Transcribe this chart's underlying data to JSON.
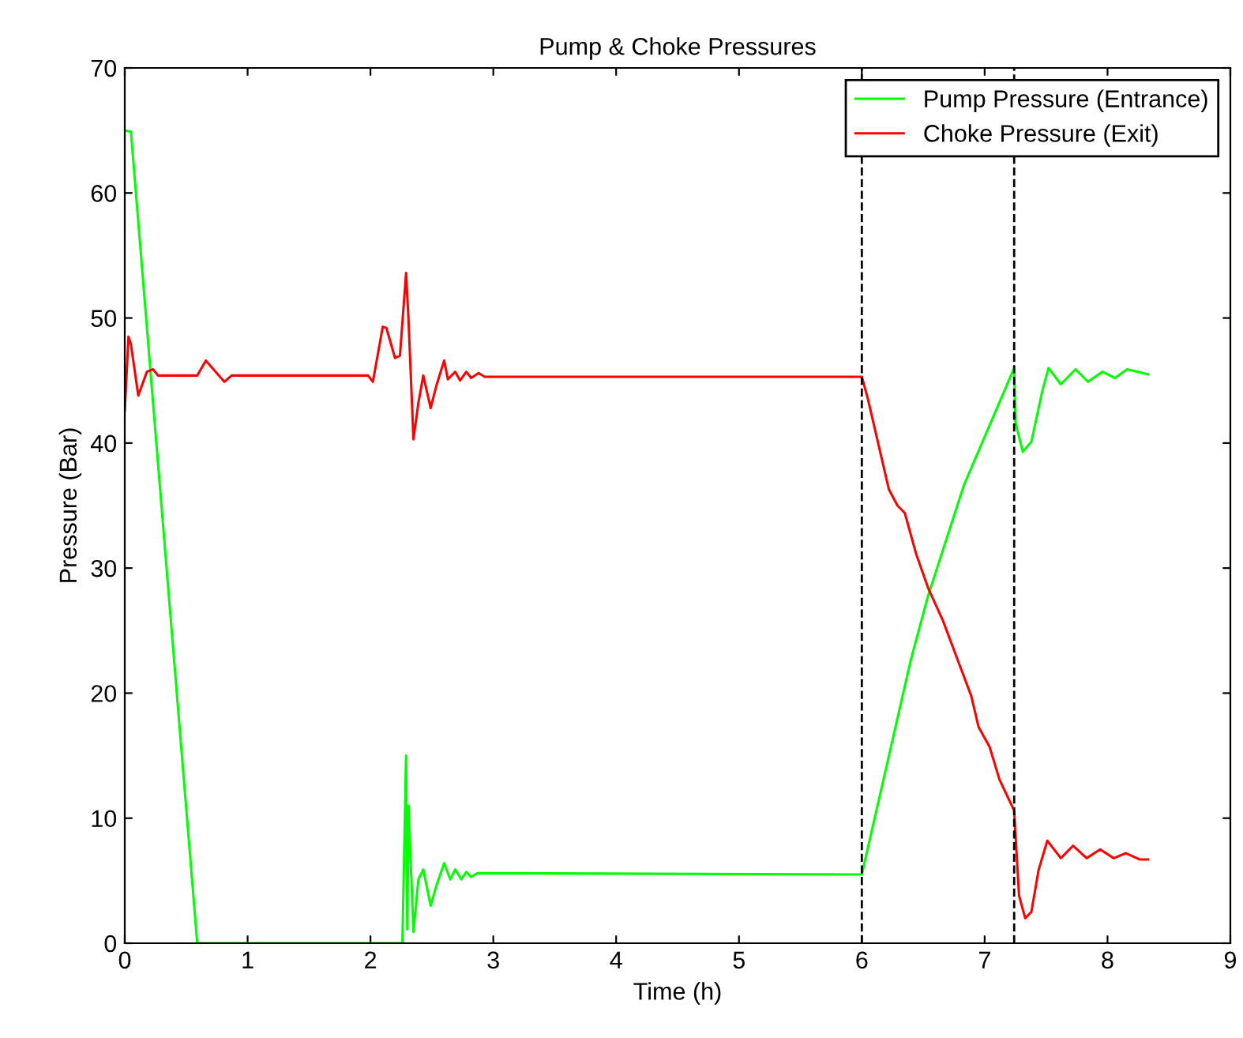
{
  "chart_data": {
    "type": "line",
    "title": "Pump & Choke Pressures",
    "xlabel": "Time (h)",
    "ylabel": "Pressure (Bar)",
    "xlim": [
      0,
      9
    ],
    "xticks": [
      0,
      1,
      2,
      3,
      4,
      5,
      6,
      7,
      8,
      9
    ],
    "ylim": [
      0,
      70
    ],
    "yticks": [
      0,
      10,
      20,
      30,
      40,
      50,
      60,
      70
    ],
    "grid": false,
    "legend": "top right",
    "line_style": "solid",
    "marker": "none",
    "ref_lines": [
      {
        "axis": "x",
        "value": 6.0,
        "color": "#000000",
        "line_style": "dashed"
      },
      {
        "axis": "x",
        "value": 7.24,
        "color": "#000000",
        "line_style": "dashed"
      }
    ],
    "series": [
      {
        "name": "Pump Pressure (Entrance)",
        "color": "#00ff00",
        "x": [
          0,
          0.05,
          0.59,
          2.26,
          2.29,
          2.3,
          2.31,
          2.35,
          2.39,
          2.43,
          2.49,
          2.54,
          2.6,
          2.65,
          2.69,
          2.74,
          2.78,
          2.82,
          2.87,
          6.0,
          6.4,
          6.54,
          6.83,
          7.24,
          7.25,
          7.31,
          7.38,
          7.47,
          7.52,
          7.62,
          7.74,
          7.84,
          7.96,
          8.06,
          8.16,
          8.33
        ],
        "values": [
          65,
          64.9,
          0,
          0,
          15.0,
          1.1,
          11.0,
          0.9,
          5.1,
          5.9,
          3.0,
          4.7,
          6.4,
          5.1,
          5.9,
          5.1,
          5.7,
          5.3,
          5.6,
          5.5,
          22.7,
          27.8,
          36.6,
          46.0,
          41.7,
          39.3,
          40.1,
          44.2,
          46.0,
          44.7,
          45.9,
          44.9,
          45.7,
          45.2,
          45.9,
          45.5
        ]
      },
      {
        "name": "Choke Pressure (Exit)",
        "color": "#ff0000",
        "x": [
          0,
          0.03,
          0.05,
          0.11,
          0.18,
          0.23,
          0.27,
          0.59,
          0.66,
          0.81,
          0.87,
          1.98,
          2.02,
          2.1,
          2.13,
          2.2,
          2.24,
          2.29,
          2.31,
          2.35,
          2.39,
          2.43,
          2.49,
          2.54,
          2.6,
          2.63,
          2.69,
          2.73,
          2.78,
          2.82,
          2.88,
          2.93,
          6.0,
          6.05,
          6.22,
          6.29,
          6.35,
          6.44,
          6.54,
          6.66,
          6.79,
          6.89,
          6.95,
          7.04,
          7.12,
          7.24,
          7.25,
          7.28,
          7.33,
          7.38,
          7.44,
          7.51,
          7.62,
          7.72,
          7.83,
          7.94,
          8.05,
          8.15,
          8.26,
          8.33
        ],
        "values": [
          42.6,
          48.5,
          47.9,
          43.8,
          45.7,
          45.9,
          45.4,
          45.4,
          46.6,
          44.9,
          45.4,
          45.4,
          44.9,
          49.3,
          49.2,
          46.8,
          47.0,
          53.6,
          49.8,
          40.3,
          43.2,
          45.4,
          42.8,
          44.7,
          46.6,
          45.1,
          45.7,
          45.0,
          45.7,
          45.2,
          45.6,
          45.3,
          45.3,
          43.5,
          36.3,
          35.0,
          34.4,
          31.2,
          28.4,
          25.8,
          22.4,
          19.8,
          17.3,
          15.7,
          13.1,
          10.6,
          8.8,
          3.8,
          2.0,
          2.5,
          5.9,
          8.2,
          6.8,
          7.8,
          6.8,
          7.5,
          6.8,
          7.2,
          6.7,
          6.7
        ]
      }
    ]
  }
}
